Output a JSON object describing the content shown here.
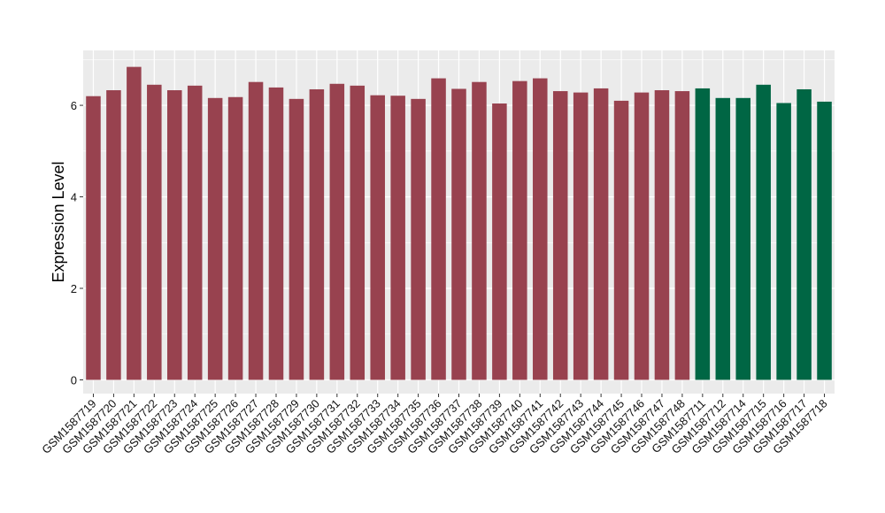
{
  "chart_data": {
    "type": "bar",
    "ylabel": "Expression Level",
    "xlabel": "",
    "ylim": [
      -0.3,
      7.2
    ],
    "yticks": [
      0,
      2,
      4,
      6
    ],
    "grid": true,
    "background": "#ebebeb",
    "grid_color": "#ffffff",
    "categories": [
      "GSM1587719",
      "GSM1587720",
      "GSM1587721",
      "GSM1587722",
      "GSM1587723",
      "GSM1587724",
      "GSM1587725",
      "GSM1587726",
      "GSM1587727",
      "GSM1587728",
      "GSM1587729",
      "GSM1587730",
      "GSM1587731",
      "GSM1587732",
      "GSM1587733",
      "GSM1587734",
      "GSM1587735",
      "GSM1587736",
      "GSM1587737",
      "GSM1587738",
      "GSM1587739",
      "GSM1587740",
      "GSM1587741",
      "GSM1587742",
      "GSM1587743",
      "GSM1587744",
      "GSM1587745",
      "GSM1587746",
      "GSM1587747",
      "GSM1587748",
      "GSM1587711",
      "GSM1587712",
      "GSM1587714",
      "GSM1587715",
      "GSM1587716",
      "GSM1587717",
      "GSM1587718"
    ],
    "values": [
      6.2,
      6.33,
      6.84,
      6.45,
      6.33,
      6.43,
      6.16,
      6.18,
      6.51,
      6.39,
      6.14,
      6.35,
      6.47,
      6.43,
      6.22,
      6.21,
      6.14,
      6.59,
      6.36,
      6.51,
      6.04,
      6.53,
      6.59,
      6.31,
      6.28,
      6.37,
      6.1,
      6.28,
      6.33,
      6.31,
      6.37,
      6.16,
      6.16,
      6.45,
      6.05,
      6.35,
      6.08
    ],
    "groups": [
      0,
      0,
      0,
      0,
      0,
      0,
      0,
      0,
      0,
      0,
      0,
      0,
      0,
      0,
      0,
      0,
      0,
      0,
      0,
      0,
      0,
      0,
      0,
      0,
      0,
      0,
      0,
      0,
      0,
      0,
      1,
      1,
      1,
      1,
      1,
      1,
      1
    ],
    "group_colors": [
      "#98424f",
      "#006644"
    ]
  }
}
